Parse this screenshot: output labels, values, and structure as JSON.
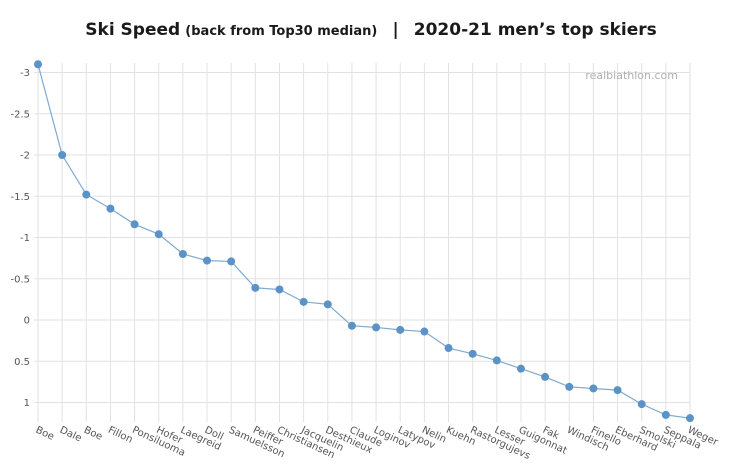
{
  "header": {
    "title_main": "Ski Speed",
    "title_sub": "(back from Top30 median)",
    "separator": "|",
    "title_right": "2020-21 men’s top skiers"
  },
  "watermark": "realbiathlon.com",
  "colors": {
    "line": "#7fa9cf",
    "point": "#5b93c7",
    "grid": "#e2e2e2"
  },
  "chart_data": {
    "type": "line",
    "title": "Ski Speed (back from Top30 median) | 2020-21 men’s top skiers",
    "xlabel": "",
    "ylabel": "",
    "y_inverted": true,
    "ylim": [
      -3.2,
      1.2
    ],
    "yticks": [
      -3,
      -2.5,
      -2,
      -1.5,
      -1,
      -0.5,
      0,
      0.5,
      1
    ],
    "ytick_labels": [
      "-3",
      "-2.5",
      "-2",
      "-1.5",
      "-1",
      "-0.5",
      "0",
      "0.5",
      "1"
    ],
    "grid": true,
    "categories": [
      "Boe",
      "Dale",
      "Boe",
      "Fillon",
      "Ponsiluoma",
      "Hofer",
      "Laegreid",
      "Doll",
      "Samuelsson",
      "Peiffer",
      "Christiansen",
      "Jacquelin",
      "Desthieux",
      "Claude",
      "Loginov",
      "Latypov",
      "Nelin",
      "Kuehn",
      "Rastorgujevs",
      "Lesser",
      "Guigonnat",
      "Fak",
      "Windisch",
      "Finello",
      "Eberhard",
      "Smolski",
      "Seppala",
      "Weger"
    ],
    "values": [
      -3.1,
      -2.0,
      -1.52,
      -1.35,
      -1.16,
      -1.04,
      -0.8,
      -0.72,
      -0.71,
      -0.39,
      -0.37,
      -0.22,
      -0.19,
      0.07,
      0.09,
      0.12,
      0.14,
      0.34,
      0.41,
      0.49,
      0.59,
      0.69,
      0.81,
      0.83,
      0.85,
      1.02,
      1.15,
      1.19
    ]
  }
}
